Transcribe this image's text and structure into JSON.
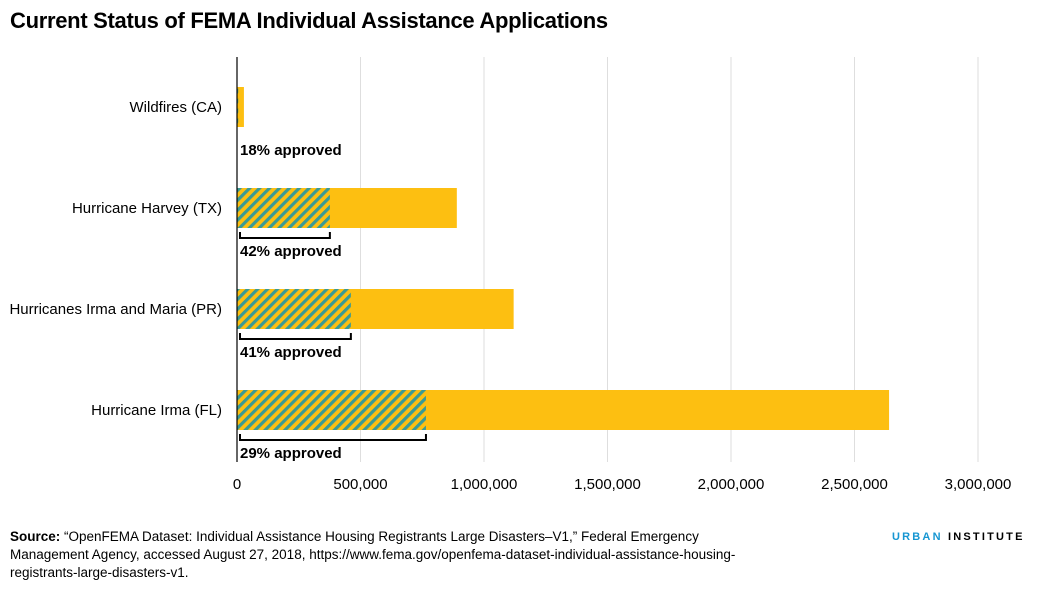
{
  "chart_data": {
    "type": "bar",
    "orientation": "horizontal",
    "title": "Current Status of FEMA Individual Assistance Applications",
    "categories": [
      "Wildfires (CA)",
      "Hurricane Harvey (TX)",
      "Hurricanes Irma and Maria (PR)",
      "Hurricane Irma (FL)"
    ],
    "series": [
      {
        "values": [
          28000,
          890000,
          1120000,
          2640000
        ]
      },
      {
        "values": [
          5000,
          376000,
          461000,
          765000
        ]
      }
    ],
    "annotations": [
      "18% approved",
      "42% approved",
      "41% approved",
      "29% approved"
    ],
    "xlim": [
      0,
      3000000
    ],
    "xticks": [
      "0",
      "500,000",
      "1,000,000",
      "1,500,000",
      "2,000,000",
      "2,500,000",
      "3,000,000"
    ],
    "grid": true,
    "colors": {
      "total": "#fdbf11",
      "approved_stripe": "#3a9a94"
    }
  },
  "source": {
    "label": "Source:",
    "text": " “OpenFEMA Dataset: Individual Assistance Housing Registrants Large Disasters–V1,” Federal Emergency Management Agency, accessed August 27, 2018, https://www.fema.gov/openfema-dataset-individual-assistance-housing-registrants-large-disasters-v1."
  },
  "logo": {
    "part1": "URBAN",
    "part2": "INSTITUTE"
  }
}
